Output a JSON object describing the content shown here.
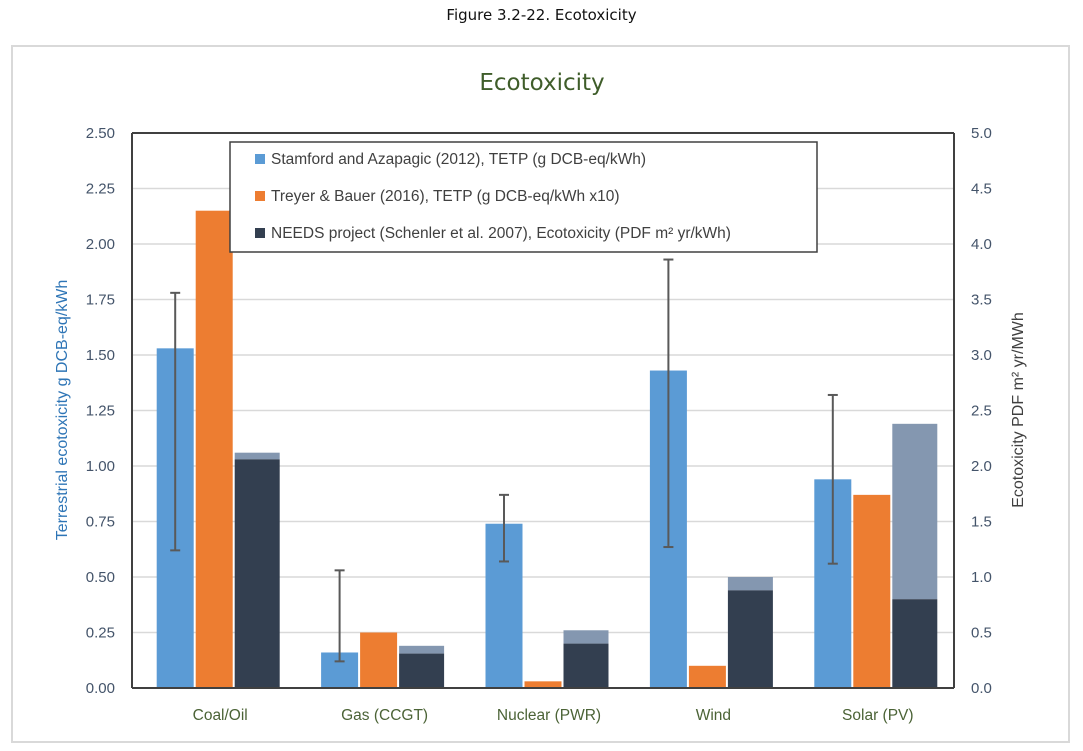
{
  "figure_caption": "Figure 3.2-22. Ecotoxicity",
  "chart_data": {
    "type": "bar",
    "title": "Ecotoxicity",
    "xlabel": "",
    "ylabel": "Terrestrial ecotoxicity g DCB-eq/kWh",
    "y2label": "Ecotoxicity PDF m² yr/MWh",
    "ylim": [
      0,
      2.5
    ],
    "y2lim": [
      0,
      5.0
    ],
    "yticks": [
      "0.00",
      "0.25",
      "0.50",
      "0.75",
      "1.00",
      "1.25",
      "1.50",
      "1.75",
      "2.00",
      "2.25",
      "2.50"
    ],
    "y2ticks": [
      "0.0",
      "0.5",
      "1.0",
      "1.5",
      "2.0",
      "2.5",
      "3.0",
      "3.5",
      "4.0",
      "4.5",
      "5.0"
    ],
    "grid": true,
    "legend_position": "top-center",
    "categories": [
      "Coal/Oil",
      "Gas (CCGT)",
      "Nuclear (PWR)",
      "Wind",
      "Solar (PV)"
    ],
    "series": [
      {
        "name": "Stamford and Azapagic (2012), TETP (g DCB-eq/kWh)",
        "color": "#5b9bd5",
        "values": [
          1.53,
          0.16,
          0.74,
          1.43,
          0.94
        ],
        "error_high": [
          1.78,
          0.53,
          0.87,
          1.93,
          1.32
        ],
        "error_low": [
          0.62,
          0.12,
          0.57,
          0.635,
          0.56
        ]
      },
      {
        "name": "Treyer & Bauer (2016), TETP (g DCB-eq/kWh x10)",
        "color": "#ed7d31",
        "values": [
          2.15,
          0.25,
          0.03,
          0.1,
          0.87
        ]
      },
      {
        "name": "NEEDS project (Schenler et al. 2007), Ecotoxicity (PDF m² yr/kWh)",
        "color": "#333f50",
        "range_color": "#8497b0",
        "values": [
          1.03,
          0.155,
          0.2,
          0.44,
          0.4
        ],
        "range_high": [
          1.06,
          0.19,
          0.26,
          0.5,
          1.19
        ]
      }
    ]
  }
}
